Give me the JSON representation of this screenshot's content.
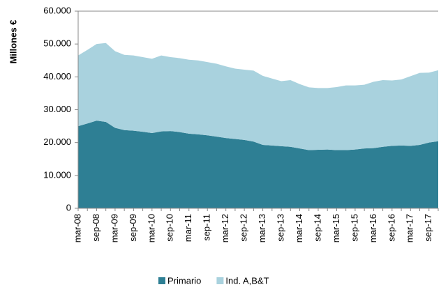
{
  "chart_data": {
    "type": "stacked-area",
    "y_label": "Millones €",
    "categories": [
      "mar-08",
      null,
      "sep-08",
      null,
      "mar-09",
      null,
      "sep-09",
      null,
      "mar-10",
      null,
      "sep-10",
      null,
      "mar-11",
      null,
      "sep-11",
      null,
      "mar-12",
      null,
      "sep-12",
      null,
      "mar-13",
      null,
      "sep-13",
      null,
      "mar-14",
      null,
      "sep-14",
      null,
      "mar-15",
      null,
      "sep-15",
      null,
      "mar-16",
      null,
      "sep-16",
      null,
      "mar-17",
      null,
      "sep-17",
      null
    ],
    "series": [
      {
        "name": "Primario",
        "color": "#2e7f94",
        "values": [
          25000,
          25800,
          26700,
          26300,
          24500,
          23800,
          23600,
          23300,
          22900,
          23400,
          23500,
          23200,
          22700,
          22500,
          22200,
          21800,
          21400,
          21100,
          20800,
          20300,
          19300,
          19100,
          18900,
          18700,
          18200,
          17700,
          17800,
          17900,
          17700,
          17700,
          17900,
          18200,
          18300,
          18700,
          19000,
          19100,
          19000,
          19300,
          20000,
          20400
        ]
      },
      {
        "name": "Ind. A,B&T",
        "color": "#a9d2de",
        "values": [
          21500,
          22400,
          23300,
          24000,
          23300,
          22900,
          22900,
          22700,
          22600,
          23100,
          22500,
          22500,
          22500,
          22500,
          22300,
          22200,
          21800,
          21400,
          21400,
          21600,
          21000,
          20400,
          19800,
          20300,
          19600,
          19100,
          18800,
          18700,
          19200,
          19700,
          19500,
          19400,
          20200,
          20300,
          19900,
          20100,
          21200,
          21900,
          21300,
          21600
        ]
      }
    ],
    "ylim": [
      0,
      60000
    ],
    "yticks": [
      0,
      {
        "value": 10000,
        "label": "10.000"
      },
      {
        "value": 20000,
        "label": "20.000"
      },
      {
        "value": 30000,
        "label": "30.000"
      },
      {
        "value": 40000,
        "label": "40.000"
      },
      {
        "value": 50000,
        "label": "50.000"
      },
      {
        "value": 60000,
        "label": "60.000"
      }
    ],
    "legend": "bottom"
  }
}
